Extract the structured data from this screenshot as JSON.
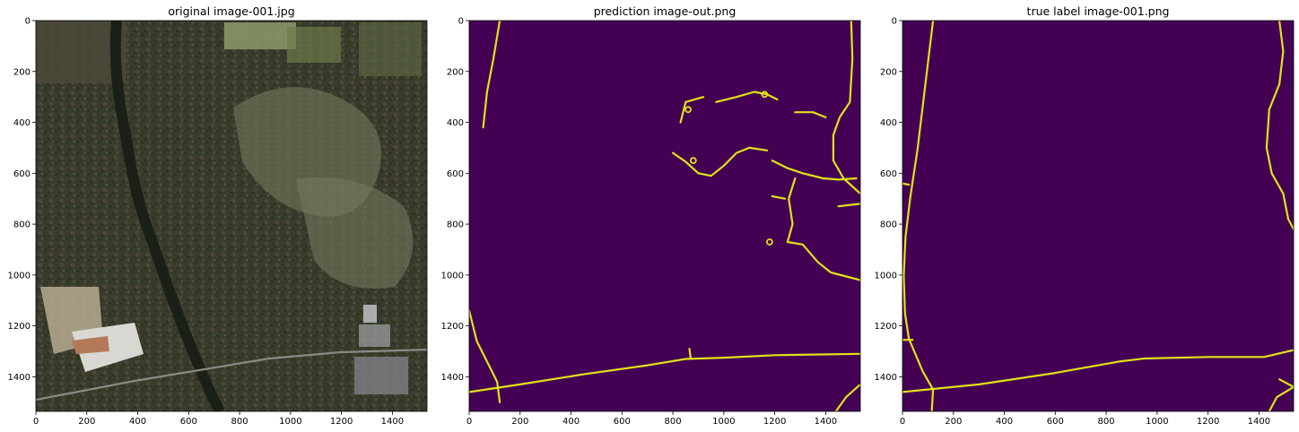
{
  "figure": {
    "panels": [
      {
        "title": "original image-001.jpg"
      },
      {
        "title": "prediction image-out.png"
      },
      {
        "title": "true label image-001.png"
      }
    ]
  },
  "chart_data": [
    {
      "type": "image",
      "title": "original image-001.jpg",
      "content": "aerial photograph",
      "xlim": [
        0,
        1536
      ],
      "ylim": [
        1536,
        0
      ],
      "x_ticks": [
        0,
        200,
        400,
        600,
        800,
        1000,
        1200,
        1400
      ],
      "y_ticks": [
        0,
        200,
        400,
        600,
        800,
        1000,
        1200,
        1400
      ]
    },
    {
      "type": "image",
      "title": "prediction image-out.png",
      "colormap": {
        "background": "#440154",
        "road": "#dfe318"
      },
      "xlim": [
        0,
        1536
      ],
      "ylim": [
        1536,
        0
      ],
      "x_ticks": [
        0,
        200,
        400,
        600,
        800,
        1000,
        1200,
        1400
      ],
      "y_ticks": [
        0,
        200,
        400,
        600,
        800,
        1000,
        1200,
        1400
      ],
      "roads": [
        [
          [
            120,
            0
          ],
          [
            95,
            150
          ],
          [
            70,
            280
          ],
          [
            55,
            420
          ]
        ],
        [
          [
            0,
            1140
          ],
          [
            30,
            1260
          ],
          [
            80,
            1360
          ],
          [
            110,
            1420
          ],
          [
            120,
            1500
          ]
        ],
        [
          [
            0,
            1460
          ],
          [
            200,
            1430
          ],
          [
            450,
            1390
          ],
          [
            700,
            1355
          ],
          [
            850,
            1330
          ],
          [
            1000,
            1325
          ],
          [
            1200,
            1315
          ],
          [
            1536,
            1310
          ]
        ],
        [
          [
            1500,
            0
          ],
          [
            1505,
            150
          ],
          [
            1495,
            320
          ],
          [
            1455,
            380
          ],
          [
            1430,
            450
          ],
          [
            1430,
            550
          ],
          [
            1470,
            620
          ],
          [
            1536,
            680
          ]
        ],
        [
          [
            830,
            400
          ],
          [
            850,
            320
          ],
          [
            920,
            300
          ]
        ],
        [
          [
            970,
            320
          ],
          [
            1050,
            300
          ],
          [
            1120,
            280
          ],
          [
            1170,
            290
          ],
          [
            1210,
            310
          ]
        ],
        [
          [
            1280,
            360
          ],
          [
            1350,
            360
          ],
          [
            1400,
            380
          ]
        ],
        [
          [
            800,
            520
          ],
          [
            850,
            555
          ],
          [
            900,
            600
          ],
          [
            950,
            610
          ],
          [
            1000,
            570
          ],
          [
            1050,
            520
          ],
          [
            1100,
            500
          ],
          [
            1170,
            510
          ]
        ],
        [
          [
            1190,
            550
          ],
          [
            1250,
            580
          ],
          [
            1310,
            600
          ],
          [
            1390,
            620
          ],
          [
            1450,
            625
          ],
          [
            1520,
            620
          ]
        ],
        [
          [
            1280,
            620
          ],
          [
            1255,
            700
          ],
          [
            1270,
            800
          ],
          [
            1250,
            870
          ],
          [
            1310,
            880
          ],
          [
            1370,
            950
          ],
          [
            1420,
            990
          ],
          [
            1536,
            1020
          ]
        ],
        [
          [
            1190,
            690
          ],
          [
            1240,
            700
          ]
        ],
        [
          [
            1450,
            730
          ],
          [
            1536,
            720
          ]
        ],
        [
          [
            865,
            1290
          ],
          [
            870,
            1330
          ]
        ],
        [
          [
            1440,
            1536
          ],
          [
            1480,
            1480
          ],
          [
            1536,
            1430
          ]
        ]
      ],
      "junctions": [
        [
          1160,
          290
        ],
        [
          880,
          550
        ],
        [
          1180,
          870
        ],
        [
          860,
          350
        ]
      ]
    },
    {
      "type": "image",
      "title": "true label image-001.png",
      "colormap": {
        "background": "#440154",
        "road": "#dfe318"
      },
      "xlim": [
        0,
        1536
      ],
      "ylim": [
        1536,
        0
      ],
      "x_ticks": [
        0,
        200,
        400,
        600,
        800,
        1000,
        1200,
        1400
      ],
      "y_ticks": [
        0,
        200,
        400,
        600,
        800,
        1000,
        1200,
        1400
      ],
      "roads": [
        [
          [
            120,
            0
          ],
          [
            90,
            250
          ],
          [
            60,
            500
          ],
          [
            30,
            700
          ],
          [
            12,
            850
          ],
          [
            5,
            1000
          ],
          [
            10,
            1150
          ],
          [
            25,
            1250
          ],
          [
            80,
            1380
          ],
          [
            120,
            1450
          ],
          [
            115,
            1536
          ]
        ],
        [
          [
            0,
            640
          ],
          [
            25,
            645
          ]
        ],
        [
          [
            0,
            1255
          ],
          [
            40,
            1255
          ]
        ],
        [
          [
            0,
            1460
          ],
          [
            300,
            1430
          ],
          [
            600,
            1385
          ],
          [
            850,
            1340
          ],
          [
            950,
            1328
          ],
          [
            1200,
            1322
          ],
          [
            1420,
            1322
          ],
          [
            1536,
            1295
          ]
        ],
        [
          [
            1480,
            0
          ],
          [
            1495,
            120
          ],
          [
            1480,
            250
          ],
          [
            1440,
            350
          ],
          [
            1430,
            500
          ],
          [
            1450,
            600
          ],
          [
            1495,
            680
          ],
          [
            1515,
            780
          ],
          [
            1536,
            820
          ]
        ],
        [
          [
            1440,
            1536
          ],
          [
            1470,
            1480
          ],
          [
            1536,
            1440
          ]
        ],
        [
          [
            1480,
            1410
          ],
          [
            1536,
            1440
          ]
        ]
      ]
    }
  ]
}
